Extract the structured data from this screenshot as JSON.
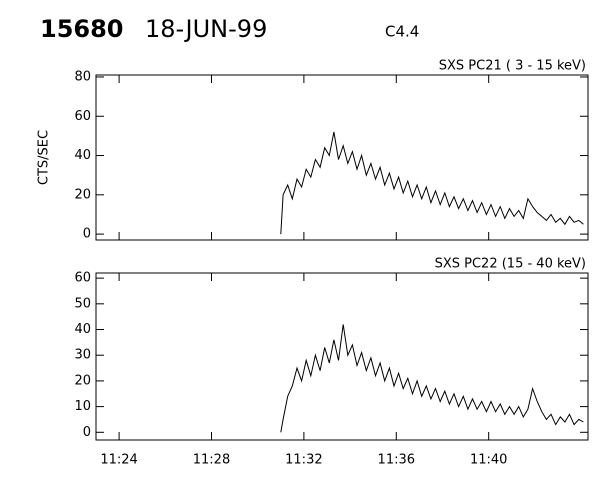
{
  "header": {
    "id": "15680",
    "date": "18-JUN-99",
    "class": "C4.4"
  },
  "chart_data": [
    {
      "type": "line",
      "title": "SXS PC21 (  3 - 15 keV)",
      "ylabel": "CTS/SEC",
      "color": "#000000",
      "xlim": [
        683,
        704.3
      ],
      "ylim": [
        -3,
        81
      ],
      "yticks": [
        0,
        20,
        40,
        60,
        80
      ],
      "x": [
        691.0,
        691.1,
        691.3,
        691.5,
        691.7,
        691.9,
        692.1,
        692.3,
        692.5,
        692.7,
        692.9,
        693.1,
        693.3,
        693.5,
        693.7,
        693.9,
        694.1,
        694.3,
        694.5,
        694.7,
        694.9,
        695.1,
        695.3,
        695.5,
        695.7,
        695.9,
        696.1,
        696.3,
        696.5,
        696.7,
        696.9,
        697.1,
        697.3,
        697.5,
        697.7,
        697.9,
        698.1,
        698.3,
        698.5,
        698.7,
        698.9,
        699.1,
        699.3,
        699.5,
        699.7,
        699.9,
        700.1,
        700.3,
        700.5,
        700.7,
        700.9,
        701.1,
        701.3,
        701.5,
        701.7,
        701.9,
        702.1,
        702.3,
        702.5,
        702.7,
        702.9,
        703.1,
        703.3,
        703.5,
        703.7,
        703.9,
        704.1
      ],
      "values": [
        0,
        20,
        25,
        18,
        28,
        24,
        33,
        29,
        38,
        34,
        44,
        40,
        52,
        38,
        45,
        36,
        42,
        33,
        40,
        30,
        36,
        28,
        34,
        25,
        31,
        23,
        29,
        21,
        27,
        19,
        25,
        18,
        24,
        16,
        22,
        15,
        21,
        14,
        19,
        13,
        18,
        12,
        17,
        11,
        16,
        10,
        15,
        9,
        14,
        8,
        13,
        9,
        12,
        8,
        18,
        14,
        11,
        9,
        7,
        10,
        6,
        8,
        5,
        9,
        6,
        7,
        5
      ]
    },
    {
      "type": "line",
      "title": "SXS PC22  (15 - 40 keV)",
      "color": "#000000",
      "xlim": [
        683,
        704.3
      ],
      "ylim": [
        -3,
        62
      ],
      "yticks": [
        0,
        10,
        20,
        30,
        40,
        50,
        60
      ],
      "xticks": [
        {
          "value": 684,
          "label": "11:24"
        },
        {
          "value": 688,
          "label": "11:28"
        },
        {
          "value": 692,
          "label": "11:32"
        },
        {
          "value": 696,
          "label": "11:36"
        },
        {
          "value": 700,
          "label": "11:40"
        }
      ],
      "x": [
        691.0,
        691.1,
        691.3,
        691.5,
        691.7,
        691.9,
        692.1,
        692.3,
        692.5,
        692.7,
        692.9,
        693.1,
        693.3,
        693.5,
        693.7,
        693.9,
        694.1,
        694.3,
        694.5,
        694.7,
        694.9,
        695.1,
        695.3,
        695.5,
        695.7,
        695.9,
        696.1,
        696.3,
        696.5,
        696.7,
        696.9,
        697.1,
        697.3,
        697.5,
        697.7,
        697.9,
        698.1,
        698.3,
        698.5,
        698.7,
        698.9,
        699.1,
        699.3,
        699.5,
        699.7,
        699.9,
        700.1,
        700.3,
        700.5,
        700.7,
        700.9,
        701.1,
        701.3,
        701.5,
        701.7,
        701.9,
        702.1,
        702.3,
        702.5,
        702.7,
        702.9,
        703.1,
        703.3,
        703.5,
        703.7,
        703.9,
        704.1
      ],
      "values": [
        0,
        5,
        14,
        18,
        25,
        20,
        28,
        22,
        30,
        24,
        33,
        27,
        36,
        28,
        42,
        30,
        34,
        26,
        31,
        24,
        29,
        22,
        27,
        20,
        25,
        18,
        23,
        17,
        21,
        15,
        20,
        14,
        18,
        13,
        17,
        12,
        16,
        11,
        15,
        10,
        14,
        9,
        13,
        9,
        12,
        8,
        12,
        8,
        11,
        7,
        10,
        7,
        10,
        6,
        9,
        17,
        12,
        8,
        5,
        7,
        3,
        6,
        4,
        7,
        3,
        5,
        4
      ]
    }
  ]
}
